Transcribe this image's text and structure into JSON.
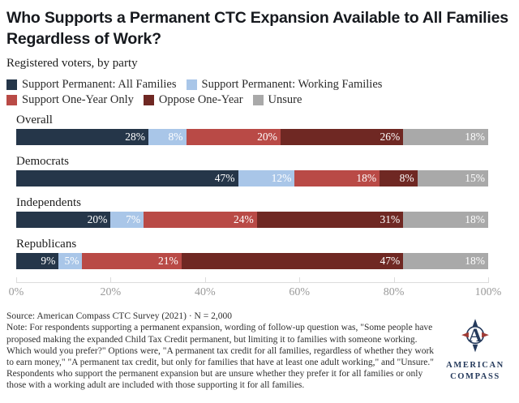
{
  "header": {
    "title": "Who Supports a Permanent CTC Expansion Available to All Families Regardless of Work?",
    "subtitle": "Registered voters, by party"
  },
  "legend": [
    {
      "label": "Support Permanent: All Families",
      "color": "#253649"
    },
    {
      "label": "Support Permanent: Working Families",
      "color": "#a9c6e8"
    },
    {
      "label": "Support One-Year Only",
      "color": "#b94a46"
    },
    {
      "label": "Oppose One-Year",
      "color": "#6f2823"
    },
    {
      "label": "Unsure",
      "color": "#a9a9a9"
    }
  ],
  "chart_data": {
    "type": "bar",
    "orientation": "horizontal-stacked",
    "title": "Who Supports a Permanent CTC Expansion Available to All Families Regardless of Work?",
    "subtitle": "Registered voters, by party",
    "categories": [
      "Overall",
      "Democrats",
      "Independents",
      "Republicans"
    ],
    "series": [
      {
        "name": "Support Permanent: All Families",
        "color": "#253649",
        "values": [
          28,
          47,
          20,
          9
        ]
      },
      {
        "name": "Support Permanent: Working Families",
        "color": "#a9c6e8",
        "values": [
          8,
          12,
          7,
          5
        ]
      },
      {
        "name": "Support One-Year Only",
        "color": "#b94a46",
        "values": [
          20,
          18,
          24,
          21
        ]
      },
      {
        "name": "Oppose One-Year",
        "color": "#6f2823",
        "values": [
          26,
          8,
          31,
          47
        ]
      },
      {
        "name": "Unsure",
        "color": "#a9a9a9",
        "values": [
          18,
          15,
          18,
          18
        ]
      }
    ],
    "xlim": [
      0,
      100
    ],
    "x_ticks": [
      "0%",
      "20%",
      "40%",
      "60%",
      "80%",
      "100%"
    ],
    "value_suffix": "%",
    "legend_position": "top",
    "grid": false
  },
  "footer": {
    "source": "Source: American Compass CTC Survey (2021) · N = 2,000",
    "note": "Note: For respondents supporting a permanent expansion, wording of follow-up question was, \"Some people have proposed making the expanded Child Tax Credit permanent, but limiting it to families with someone working. Which would you prefer?\" Options were, \"A permanent tax credit for all families, regardless of whether they work to earn money,\" \"A permanent tax credit, but only for families that have at least one adult working,\" and \"Unsure.\" Respondents who support the permanent expansion but are unsure whether they prefer it for all families or only those with a working adult are included with those supporting it for all families."
  },
  "logo": {
    "line1": "AMERICAN",
    "line2": "COMPASS"
  }
}
